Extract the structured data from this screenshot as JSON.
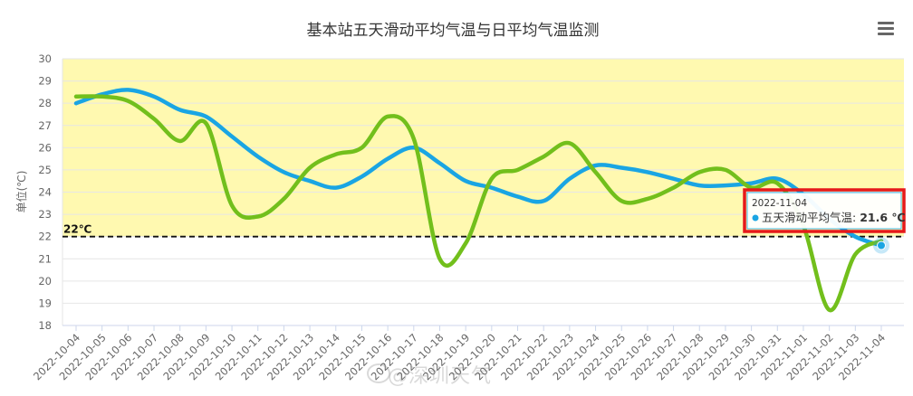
{
  "chart_data": {
    "type": "line",
    "title": "基本站五天滑动平均气温与日平均气温监测",
    "xlabel": "",
    "ylabel": "单位(℃)",
    "ylim": [
      18,
      30
    ],
    "yticks": [
      "18",
      "19",
      "20",
      "21",
      "22",
      "23",
      "24",
      "25",
      "26",
      "27",
      "28",
      "29",
      "30"
    ],
    "grid": true,
    "legend": "none",
    "categories": [
      "2022-10-04",
      "2022-10-05",
      "2022-10-06",
      "2022-10-07",
      "2022-10-08",
      "2022-10-09",
      "2022-10-10",
      "2022-10-11",
      "2022-10-12",
      "2022-10-13",
      "2022-10-14",
      "2022-10-15",
      "2022-10-16",
      "2022-10-17",
      "2022-10-18",
      "2022-10-19",
      "2022-10-20",
      "2022-10-21",
      "2022-10-22",
      "2022-10-23",
      "2022-10-24",
      "2022-10-25",
      "2022-10-26",
      "2022-10-27",
      "2022-10-28",
      "2022-10-29",
      "2022-10-30",
      "2022-10-31",
      "2022-11-01",
      "2022-11-02",
      "2022-11-03",
      "2022-11-04"
    ],
    "series": [
      {
        "name": "五天滑动平均气温",
        "color": "#1aa5e3",
        "values": [
          28.0,
          28.4,
          28.6,
          28.3,
          27.7,
          27.4,
          26.5,
          25.6,
          24.9,
          24.5,
          24.2,
          24.7,
          25.5,
          26.0,
          25.3,
          24.5,
          24.2,
          23.8,
          23.6,
          24.6,
          25.2,
          25.1,
          24.9,
          24.6,
          24.3,
          24.3,
          24.4,
          24.6,
          23.9,
          22.8,
          22.0,
          21.6
        ]
      },
      {
        "name": "",
        "color": "#72bf1c",
        "values": [
          28.3,
          28.3,
          28.1,
          27.3,
          26.3,
          27.1,
          23.4,
          22.9,
          23.7,
          25.1,
          25.7,
          26.0,
          27.4,
          26.4,
          21.0,
          21.7,
          24.6,
          25.0,
          25.6,
          26.2,
          24.9,
          23.6,
          23.7,
          24.2,
          24.9,
          25.0,
          24.2,
          24.4,
          22.5,
          18.7,
          21.2,
          21.8
        ]
      }
    ],
    "band": {
      "from": 22,
      "to": 30,
      "color": "#fff9b0"
    },
    "reference_line": {
      "value": 22,
      "label": "22℃"
    },
    "tooltip": {
      "date": "2022-11-04",
      "series_label": "五天滑动平均气温: ",
      "value": "21.6 ℃",
      "border_color": "#e5191b"
    }
  },
  "menu": {
    "icon": "hamburger-menu-icon"
  },
  "watermark": "@深圳天气"
}
